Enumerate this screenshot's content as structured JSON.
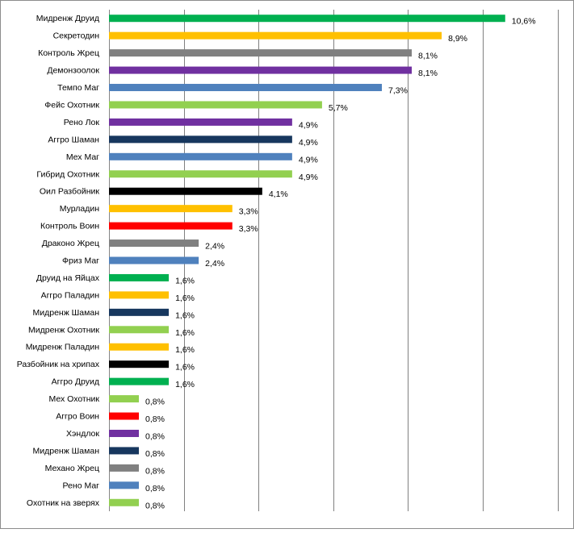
{
  "chart_data": {
    "type": "bar",
    "orientation": "horizontal",
    "title": "",
    "xlabel": "",
    "ylabel": "",
    "xlim": [
      0,
      12
    ],
    "grid": true,
    "legend": "none",
    "categories": [
      "Мидренж Друид",
      "Секретодин",
      "Контроль Жрец",
      "Демонзоолок",
      "Темпо Маг",
      "Фейс Охотник",
      "Рено Лок",
      "Аггро Шаман",
      "Мех Маг",
      "Гибрид Охотник",
      "Оил Разбойник",
      "Мурладин",
      "Контроль Воин",
      "Драконо Жрец",
      "Фриз Маг",
      "Друид на Яйцах",
      "Аггро Паладин",
      "Мидренж Шаман",
      "Мидренж Охотник",
      "Мидренж Паладин",
      "Разбойник на хрипах",
      "Аггро Друид",
      "Мех Охотник",
      "Аггро Воин",
      "Хэндлок",
      "Мидренж Шаман",
      "Механо Жрец",
      "Рено Маг",
      "Охотник на зверях"
    ],
    "values": [
      10.6,
      8.9,
      8.1,
      8.1,
      7.3,
      5.7,
      4.9,
      4.9,
      4.9,
      4.9,
      4.1,
      3.3,
      3.3,
      2.4,
      2.4,
      1.6,
      1.6,
      1.6,
      1.6,
      1.6,
      1.6,
      1.6,
      0.8,
      0.8,
      0.8,
      0.8,
      0.8,
      0.8,
      0.8
    ],
    "value_labels": [
      "10,6%",
      "8,9%",
      "8,1%",
      "8,1%",
      "7,3%",
      "5,7%",
      "4,9%",
      "4,9%",
      "4,9%",
      "4,9%",
      "4,1%",
      "3,3%",
      "3,3%",
      "2,4%",
      "2,4%",
      "1,6%",
      "1,6%",
      "1,6%",
      "1,6%",
      "1,6%",
      "1,6%",
      "1,6%",
      "0,8%",
      "0,8%",
      "0,8%",
      "0,8%",
      "0,8%",
      "0,8%",
      "0,8%"
    ],
    "colors": [
      "#00B050",
      "#FFC000",
      "#808080",
      "#7030A0",
      "#4F81BD",
      "#92D050",
      "#7030A0",
      "#17375E",
      "#4F81BD",
      "#92D050",
      "#000000",
      "#FFC000",
      "#FF0000",
      "#808080",
      "#4F81BD",
      "#00B050",
      "#FFC000",
      "#17375E",
      "#92D050",
      "#FFC000",
      "#000000",
      "#00B050",
      "#92D050",
      "#FF0000",
      "#7030A0",
      "#17375E",
      "#808080",
      "#4F81BD",
      "#92D050"
    ]
  }
}
